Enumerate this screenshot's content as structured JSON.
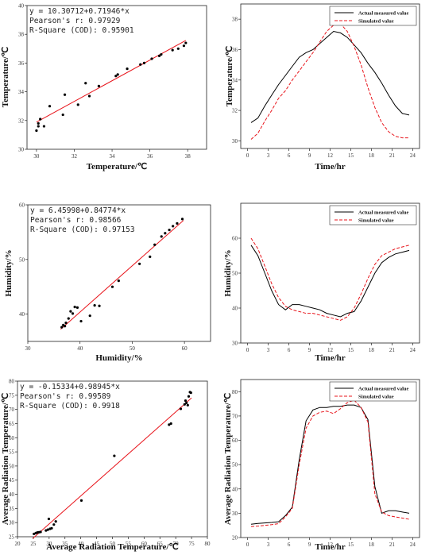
{
  "chart_data": [
    {
      "type": "scatter",
      "xlabel": "Temperature/℃",
      "ylabel": "Temperature/℃",
      "xlim": [
        29.5,
        39
      ],
      "ylim": [
        30,
        40
      ],
      "xticks": [
        30,
        32,
        34,
        36,
        38
      ],
      "yticks": [
        30,
        32,
        34,
        36,
        38,
        40
      ],
      "annotations": [
        "y = 10.30712+0.71946*x",
        "Pearson's r: 0.97929",
        "R-Square (COD): 0.95901"
      ],
      "fit": {
        "intercept": 10.30712,
        "slope": 0.71946,
        "x_range": [
          30.0,
          37.9
        ]
      },
      "points": [
        [
          30.0,
          31.3
        ],
        [
          30.1,
          31.6
        ],
        [
          30.1,
          31.8
        ],
        [
          30.2,
          32.1
        ],
        [
          30.4,
          31.6
        ],
        [
          30.7,
          33.0
        ],
        [
          31.4,
          32.4
        ],
        [
          31.5,
          33.8
        ],
        [
          32.2,
          33.1
        ],
        [
          32.6,
          34.6
        ],
        [
          32.8,
          33.7
        ],
        [
          33.3,
          34.4
        ],
        [
          34.2,
          35.1
        ],
        [
          34.3,
          35.2
        ],
        [
          34.8,
          35.6
        ],
        [
          35.5,
          35.9
        ],
        [
          35.7,
          36.0
        ],
        [
          36.1,
          36.3
        ],
        [
          36.5,
          36.5
        ],
        [
          36.6,
          36.6
        ],
        [
          37.2,
          36.9
        ],
        [
          37.5,
          37.0
        ],
        [
          37.8,
          37.2
        ],
        [
          37.9,
          37.4
        ]
      ],
      "point_color": "#000000",
      "line_color": "#e8141b"
    },
    {
      "type": "line",
      "xlabel": "Time/hr",
      "ylabel": "Temperature/℃",
      "xlim": [
        -1,
        25
      ],
      "ylim": [
        29.5,
        39
      ],
      "xticks": [
        0,
        3,
        6,
        9,
        12,
        15,
        18,
        21,
        24
      ],
      "yticks": [
        30,
        32,
        34,
        36,
        38
      ],
      "legend": "top-right",
      "x": [
        0.5,
        1.5,
        2.5,
        3.5,
        4.5,
        5.5,
        6.5,
        7.5,
        8.5,
        9.5,
        10.5,
        11.5,
        12.5,
        13.5,
        14.5,
        15.5,
        16.5,
        17.5,
        18.5,
        19.5,
        20.5,
        21.5,
        22.5,
        23.5
      ],
      "series": [
        {
          "name": "Actual measured value",
          "color": "#000000",
          "dash": "",
          "values": [
            31.2,
            31.5,
            32.3,
            33.0,
            33.7,
            34.3,
            34.9,
            35.5,
            35.8,
            36.0,
            36.4,
            36.8,
            37.2,
            37.1,
            36.8,
            36.3,
            35.8,
            35.1,
            34.5,
            33.8,
            33.0,
            32.3,
            31.8,
            31.7
          ]
        },
        {
          "name": "Simulated value",
          "color": "#e8141b",
          "dash": "4,2",
          "values": [
            30.1,
            30.5,
            31.3,
            32.0,
            32.8,
            33.3,
            34.0,
            34.6,
            35.2,
            35.8,
            36.5,
            37.2,
            37.6,
            37.7,
            37.2,
            36.2,
            35.0,
            33.5,
            32.2,
            31.2,
            30.6,
            30.3,
            30.2,
            30.2
          ]
        }
      ]
    },
    {
      "type": "scatter",
      "xlabel": "Humidity/%",
      "ylabel": "Humidity/%",
      "xlim": [
        30,
        65
      ],
      "ylim": [
        35,
        60
      ],
      "xticks": [
        30,
        40,
        50,
        60
      ],
      "yticks": [
        40,
        50,
        60
      ],
      "annotations": [
        "y = 6.45998+0.84774*x",
        "Pearson's r: 0.98566",
        "R-Square (COD): 0.97153"
      ],
      "fit": {
        "intercept": 6.45998,
        "slope": 0.84774,
        "x_range": [
          36.3,
          59.8
        ]
      },
      "points": [
        [
          36.5,
          37.6
        ],
        [
          36.8,
          38.0
        ],
        [
          37.1,
          37.8
        ],
        [
          37.3,
          38.4
        ],
        [
          37.8,
          39.2
        ],
        [
          38.2,
          40.5
        ],
        [
          38.6,
          40.1
        ],
        [
          39.0,
          41.3
        ],
        [
          39.5,
          41.2
        ],
        [
          40.2,
          38.7
        ],
        [
          41.9,
          39.7
        ],
        [
          42.8,
          41.6
        ],
        [
          43.7,
          41.5
        ],
        [
          46.2,
          45.0
        ],
        [
          47.4,
          46.1
        ],
        [
          51.4,
          49.2
        ],
        [
          53.4,
          50.5
        ],
        [
          54.3,
          52.7
        ],
        [
          55.6,
          54.2
        ],
        [
          56.3,
          54.8
        ],
        [
          57.1,
          55.4
        ],
        [
          57.8,
          56.1
        ],
        [
          58.6,
          56.6
        ],
        [
          59.6,
          57.4
        ]
      ],
      "point_color": "#000000",
      "line_color": "#e8141b"
    },
    {
      "type": "line",
      "xlabel": "Time/hr",
      "ylabel": "Humidity/%",
      "xlim": [
        -1,
        25
      ],
      "ylim": [
        30,
        70
      ],
      "xticks": [
        0,
        3,
        6,
        9,
        12,
        15,
        18,
        21,
        24
      ],
      "yticks": [
        30,
        40,
        50,
        60
      ],
      "legend": "top-right",
      "x": [
        0.5,
        1.5,
        2.5,
        3.5,
        4.5,
        5.5,
        6.5,
        7.5,
        8.5,
        9.5,
        10.5,
        11.5,
        12.5,
        13.5,
        14.5,
        15.5,
        16.5,
        17.5,
        18.5,
        19.5,
        20.5,
        21.5,
        22.5,
        23.5
      ],
      "series": [
        {
          "name": "Actual measured value",
          "color": "#000000",
          "dash": "",
          "values": [
            58.0,
            55.0,
            50.0,
            45.0,
            41.0,
            39.5,
            41.0,
            41.0,
            40.5,
            40.0,
            39.5,
            38.5,
            38.0,
            37.5,
            38.5,
            39.0,
            42.0,
            46.0,
            50.0,
            53.0,
            54.5,
            55.5,
            56.0,
            56.5
          ]
        },
        {
          "name": "Simulated value",
          "color": "#e8141b",
          "dash": "4,2",
          "values": [
            60.0,
            57.0,
            52.0,
            47.0,
            43.0,
            40.5,
            39.5,
            39.0,
            38.5,
            38.5,
            38.0,
            37.5,
            37.0,
            36.5,
            37.5,
            40.0,
            44.0,
            48.5,
            52.5,
            55.0,
            56.0,
            57.0,
            57.5,
            58.0
          ]
        }
      ]
    },
    {
      "type": "scatter",
      "xlabel": "Average Radiation Temperature/℃",
      "ylabel": "Average Radiation Temperature/℃",
      "xlim": [
        20,
        80
      ],
      "ylim": [
        25,
        80
      ],
      "xticks": [
        20,
        25,
        30,
        35,
        40,
        45,
        50,
        55,
        60,
        65,
        70,
        75,
        80
      ],
      "yticks": [
        25,
        30,
        35,
        40,
        45,
        50,
        55,
        60,
        65,
        70,
        75,
        80
      ],
      "annotations": [
        "y = -0.15334+0.98945*x",
        "Pearson's r: 0.99589",
        "R-Square (COD): 0.9918"
      ],
      "fit": {
        "intercept": -0.15334,
        "slope": 0.98945,
        "x_range": [
          24.8,
          75.0
        ]
      },
      "points": [
        [
          25.2,
          26.0
        ],
        [
          25.8,
          26.3
        ],
        [
          26.3,
          26.5
        ],
        [
          26.8,
          26.6
        ],
        [
          27.3,
          26.7
        ],
        [
          29.0,
          27.2
        ],
        [
          29.6,
          27.5
        ],
        [
          29.9,
          31.3
        ],
        [
          30.3,
          27.8
        ],
        [
          30.8,
          28.0
        ],
        [
          31.5,
          29.3
        ],
        [
          32.1,
          30.4
        ],
        [
          40.2,
          37.8
        ],
        [
          50.6,
          53.6
        ],
        [
          67.9,
          64.6
        ],
        [
          68.5,
          65.0
        ],
        [
          71.6,
          70.2
        ],
        [
          72.8,
          71.8
        ],
        [
          73.1,
          73.1
        ],
        [
          73.4,
          72.3
        ],
        [
          73.8,
          71.5
        ],
        [
          74.1,
          74.6
        ],
        [
          74.5,
          76.1
        ],
        [
          74.8,
          75.9
        ]
      ],
      "point_color": "#000000",
      "line_color": "#e8141b"
    },
    {
      "type": "line",
      "xlabel": "Time/hr",
      "ylabel": "Average Radiation Temperature/℃",
      "xlim": [
        -1,
        25
      ],
      "ylim": [
        20,
        85
      ],
      "xticks": [
        0,
        3,
        6,
        9,
        12,
        15,
        18,
        21,
        24
      ],
      "yticks": [
        20,
        30,
        40,
        50,
        60,
        70,
        80
      ],
      "legend": "top-right",
      "x": [
        0.5,
        1.5,
        2.5,
        3.5,
        4.5,
        5.5,
        6.5,
        7.5,
        8.5,
        9.5,
        10.5,
        11.5,
        12.5,
        13.5,
        14.5,
        15.5,
        16.5,
        17.5,
        18.5,
        19.5,
        20.5,
        21.5,
        22.5,
        23.5
      ],
      "series": [
        {
          "name": "Actual measured value",
          "color": "#000000",
          "dash": "",
          "values": [
            25.5,
            25.8,
            26.0,
            26.2,
            26.5,
            29.0,
            32.5,
            52.0,
            68.0,
            72.5,
            73.5,
            73.5,
            74.0,
            74.0,
            74.5,
            74.5,
            73.5,
            68.5,
            41.0,
            30.0,
            31.0,
            31.0,
            30.5,
            30.0
          ]
        },
        {
          "name": "Simulated value",
          "color": "#e8141b",
          "dash": "4,2",
          "values": [
            24.5,
            24.7,
            25.0,
            25.3,
            25.7,
            28.5,
            32.0,
            50.0,
            65.0,
            70.0,
            71.5,
            72.0,
            71.0,
            73.0,
            75.5,
            76.5,
            73.5,
            67.5,
            38.0,
            30.5,
            29.0,
            28.5,
            28.0,
            27.5
          ]
        }
      ]
    }
  ]
}
